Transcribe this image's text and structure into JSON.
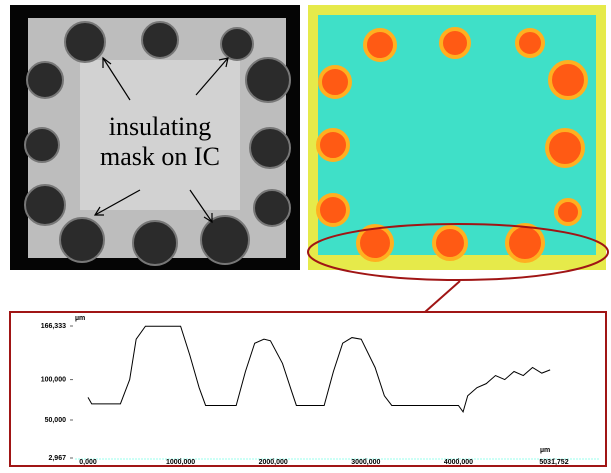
{
  "annotation": "insulating\nmask on IC",
  "chart_data": {
    "type": "line",
    "ylabel": "µm",
    "xlabel": "µm",
    "xlim": [
      0,
      5031.752
    ],
    "ylim": [
      2.967,
      166.333
    ],
    "xticks": [
      {
        "value": 0,
        "label": "0,000"
      },
      {
        "value": 1000,
        "label": "1000,000"
      },
      {
        "value": 2000,
        "label": "2000,000"
      },
      {
        "value": 3000,
        "label": "3000,000"
      },
      {
        "value": 4000,
        "label": "4000,000"
      },
      {
        "value": 5031.752,
        "label": "5031,752"
      }
    ],
    "yticks": [
      {
        "value": 2.967,
        "label": "2,967"
      },
      {
        "value": 50,
        "label": "50,000"
      },
      {
        "value": 100,
        "label": "100,000"
      },
      {
        "value": 166.333,
        "label": "166,333"
      }
    ],
    "series": [
      {
        "color": "#000000",
        "x": [
          0,
          40,
          150,
          350,
          450,
          520,
          620,
          1000,
          1100,
          1200,
          1270,
          1600,
          1700,
          1800,
          1900,
          1970,
          2100,
          2200,
          2250,
          2550,
          2650,
          2750,
          2850,
          2950,
          3100,
          3200,
          3280,
          4000,
          4050,
          4100,
          4200,
          4300,
          4400,
          4500,
          4600,
          4700,
          4800,
          4900,
          4990
        ],
        "values": [
          78,
          70,
          70,
          70,
          100,
          150,
          166,
          166,
          130,
          90,
          68,
          68,
          110,
          145,
          150,
          148,
          120,
          85,
          68,
          68,
          110,
          145,
          152,
          150,
          115,
          80,
          68,
          68,
          60,
          80,
          90,
          95,
          105,
          100,
          110,
          105,
          115,
          108,
          112
        ]
      }
    ]
  }
}
